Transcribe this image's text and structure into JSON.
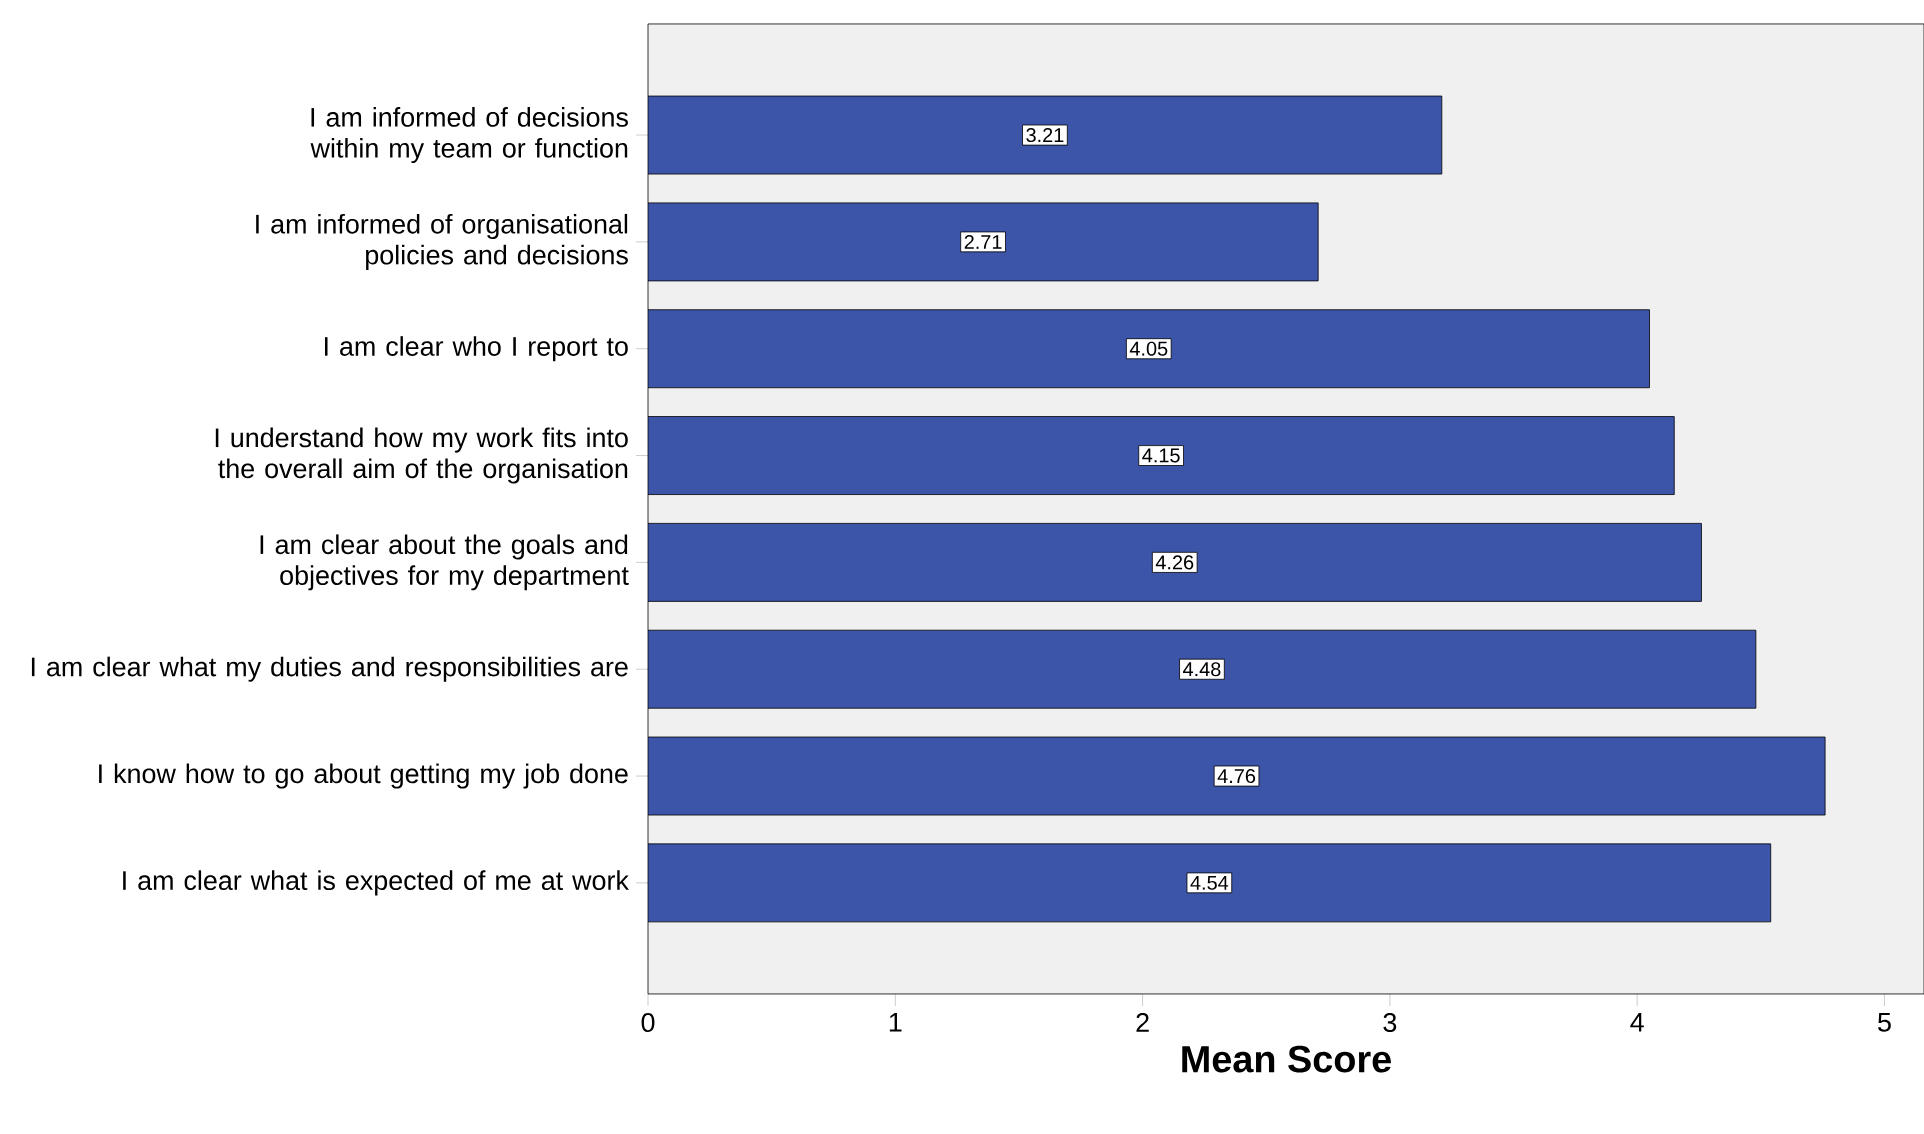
{
  "chart_data": {
    "type": "bar",
    "orientation": "horizontal",
    "xlabel": "Mean Score",
    "categories": [
      "I am informed of decisions within my team or function",
      "I am informed of organisational policies and decisions",
      "I am clear who I report to",
      "I understand how my work fits into the overall aim of the organisation",
      "I am clear about the goals and objectives for my department",
      "I am clear what my duties and responsibilities are",
      "I know how to go about getting my job done",
      "I am clear what is expected of me at work"
    ],
    "values": [
      3.21,
      2.71,
      4.05,
      4.15,
      4.26,
      4.48,
      4.76,
      4.54
    ],
    "color": "#3c55a8",
    "xlim": [
      0,
      5.16
    ],
    "xticks": [
      0,
      1,
      2,
      3,
      4,
      5
    ],
    "data_labels": true
  }
}
